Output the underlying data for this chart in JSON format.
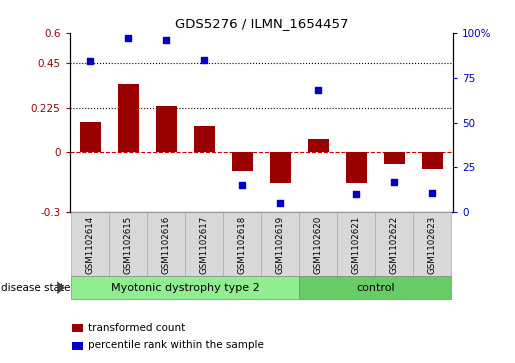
{
  "title": "GDS5276 / ILMN_1654457",
  "categories": [
    "GSM1102614",
    "GSM1102615",
    "GSM1102616",
    "GSM1102617",
    "GSM1102618",
    "GSM1102619",
    "GSM1102620",
    "GSM1102621",
    "GSM1102622",
    "GSM1102623"
  ],
  "bar_values": [
    0.155,
    0.345,
    0.235,
    0.135,
    -0.095,
    -0.155,
    0.065,
    -0.155,
    -0.06,
    -0.085
  ],
  "dot_values": [
    84,
    97,
    96,
    85,
    15,
    5,
    68,
    10,
    17,
    11
  ],
  "ylim_left": [
    -0.3,
    0.6
  ],
  "ylim_right": [
    0,
    100
  ],
  "yticks_left": [
    -0.3,
    0,
    0.225,
    0.45,
    0.6
  ],
  "yticks_right": [
    0,
    25,
    50,
    75,
    100
  ],
  "ytick_labels_left": [
    "-0.3",
    "0",
    "0.225",
    "0.45",
    "0.6"
  ],
  "ytick_labels_right": [
    "0",
    "25",
    "50",
    "75",
    "100%"
  ],
  "hlines": [
    0.225,
    0.45
  ],
  "bar_color": "#990000",
  "dot_color": "#0000cc",
  "zero_line_color": "#cc0000",
  "disease_groups": [
    {
      "label": "Myotonic dystrophy type 2",
      "start": 0,
      "end": 6,
      "color": "#90ee90"
    },
    {
      "label": "control",
      "start": 6,
      "end": 10,
      "color": "#66cc66"
    }
  ],
  "disease_state_label": "disease state",
  "legend_items": [
    {
      "label": "transformed count",
      "color": "#990000"
    },
    {
      "label": "percentile rank within the sample",
      "color": "#0000cc"
    }
  ],
  "sample_box_color": "#d8d8d8",
  "plot_bg": "#ffffff"
}
